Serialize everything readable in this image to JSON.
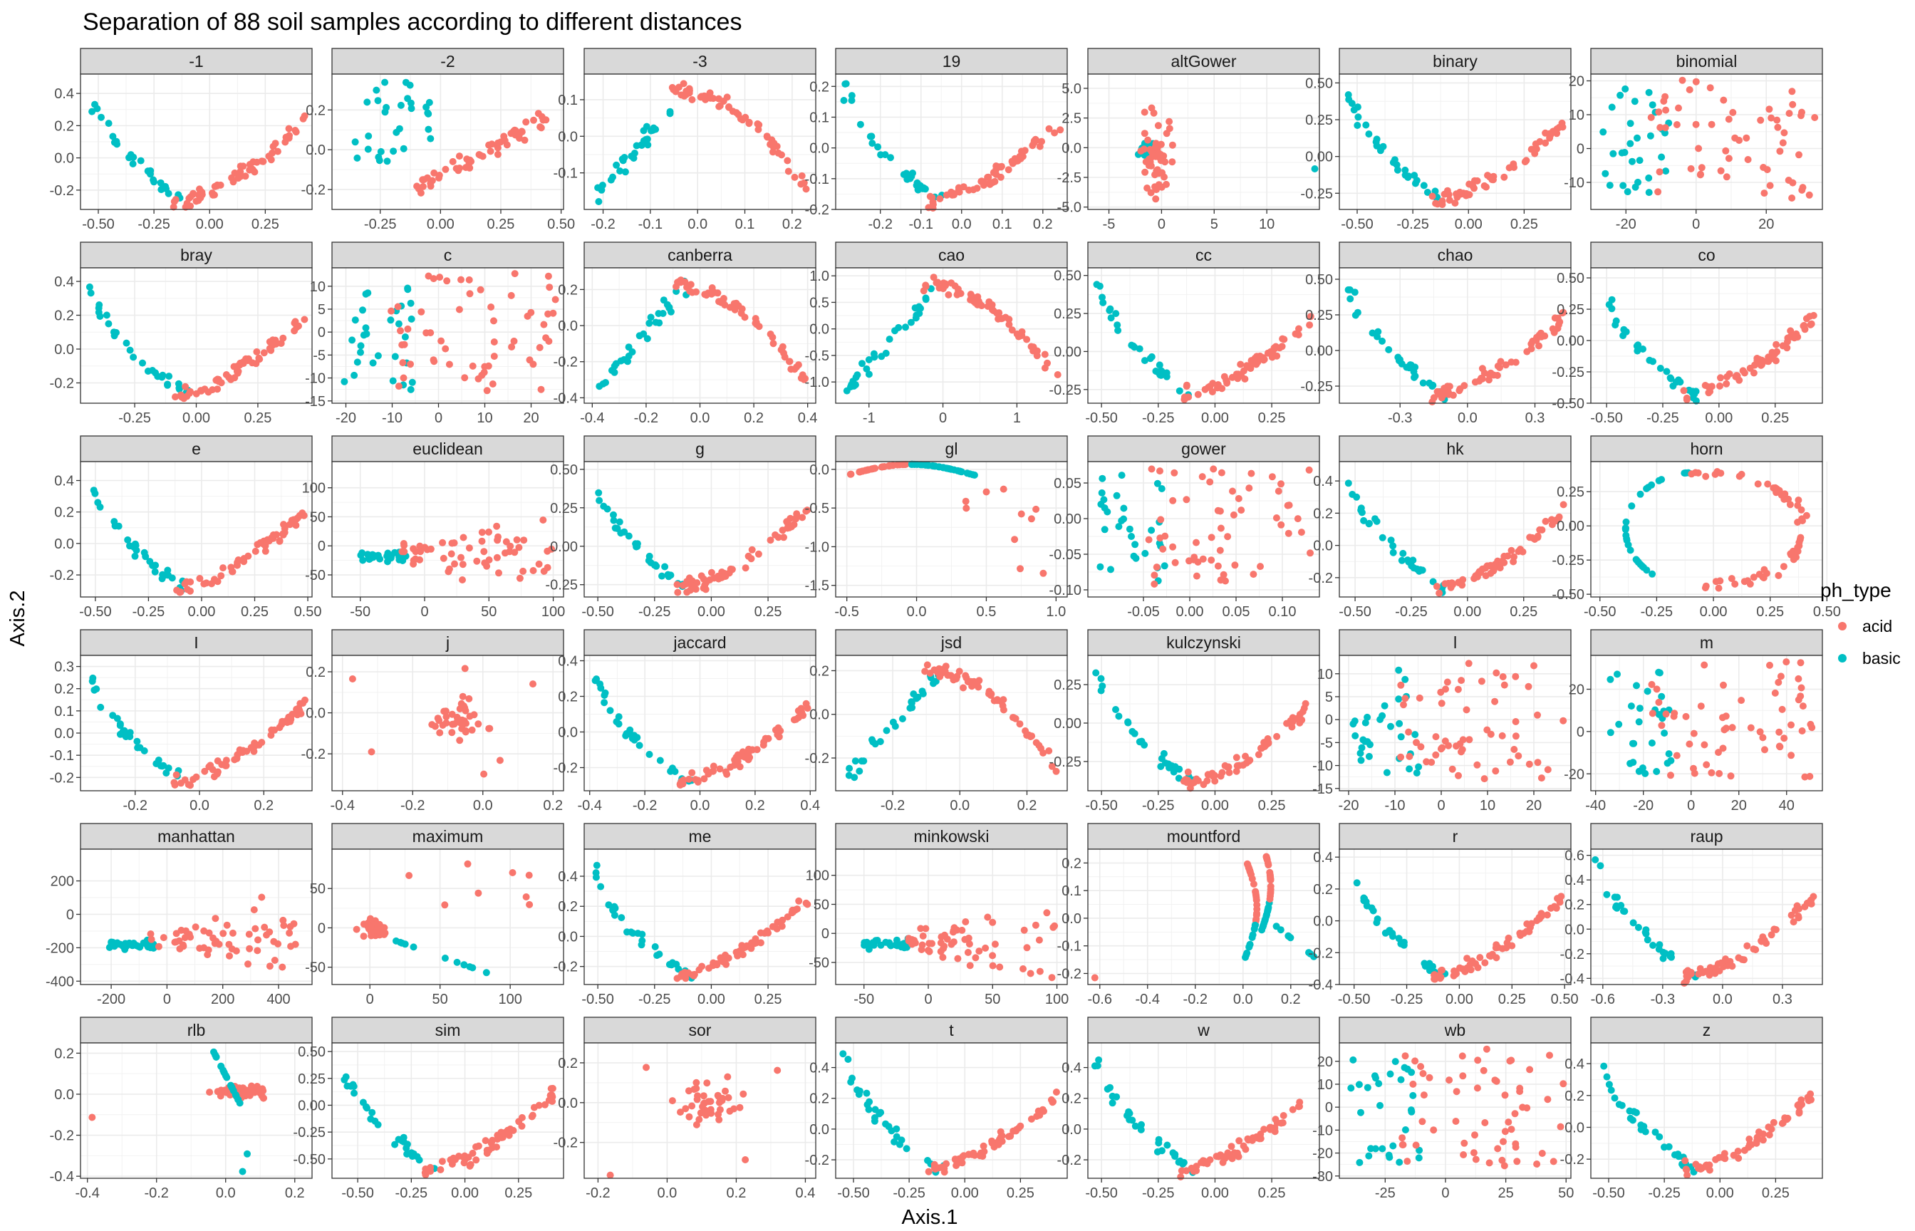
{
  "colors": {
    "acid": "#f8766d",
    "basic": "#00bfc4",
    "strip": "#d9d9d9",
    "panel_border": "#333333",
    "grid": "#ebebeb"
  },
  "chart_data": {
    "type": "scatter",
    "title": "Separation of 88 soil samples according to different distances",
    "xlabel": "Axis.1",
    "ylabel": "Axis.2",
    "legend": {
      "title": "ph_type",
      "position": "right",
      "entries": [
        "acid",
        "basic"
      ]
    },
    "facets": [
      {
        "name": "-1",
        "xticks": [
          -0.5,
          -0.25,
          0,
          0.25
        ],
        "yticks": [
          -0.2,
          0,
          0.2,
          0.4
        ],
        "xlim": [
          -0.58,
          0.46
        ],
        "ylim": [
          -0.32,
          0.52
        ],
        "xfmt": 2,
        "yfmt": 1,
        "shape": "u"
      },
      {
        "name": "-2",
        "xticks": [
          -0.25,
          0,
          0.25,
          0.5
        ],
        "yticks": [
          -0.2,
          0,
          0.2
        ],
        "xlim": [
          -0.45,
          0.51
        ],
        "ylim": [
          -0.3,
          0.38
        ],
        "xfmt": 2,
        "yfmt": 1,
        "shape": "diag"
      },
      {
        "name": "-3",
        "xticks": [
          -0.2,
          -0.1,
          0,
          0.1,
          0.2
        ],
        "yticks": [
          -0.1,
          0,
          0.1
        ],
        "xlim": [
          -0.24,
          0.25
        ],
        "ylim": [
          -0.2,
          0.17
        ],
        "xfmt": 1,
        "yfmt": 1,
        "shape": "arch"
      },
      {
        "name": "19",
        "xticks": [
          -0.2,
          -0.1,
          0,
          0.1,
          0.2
        ],
        "yticks": [
          -0.2,
          -0.1,
          0,
          0.1,
          0.2
        ],
        "xlim": [
          -0.31,
          0.26
        ],
        "ylim": [
          -0.2,
          0.24
        ],
        "xfmt": 1,
        "yfmt": 1,
        "shape": "u"
      },
      {
        "name": "altGower",
        "xticks": [
          -5,
          0,
          5,
          10
        ],
        "yticks": [
          -5,
          -2.5,
          0,
          2.5,
          5
        ],
        "xlim": [
          -7,
          15
        ],
        "ylim": [
          -5.2,
          6.2
        ],
        "xfmt": 0,
        "yfmt": 1,
        "shape": "star"
      },
      {
        "name": "binary",
        "xticks": [
          -0.5,
          -0.25,
          0,
          0.25
        ],
        "yticks": [
          -0.25,
          0,
          0.25,
          0.5
        ],
        "xlim": [
          -0.58,
          0.46
        ],
        "ylim": [
          -0.36,
          0.56
        ],
        "xfmt": 2,
        "yfmt": 2,
        "shape": "u"
      },
      {
        "name": "binomial",
        "xticks": [
          -20,
          0,
          20
        ],
        "yticks": [
          -10,
          0,
          10,
          20
        ],
        "xlim": [
          -30,
          36
        ],
        "ylim": [
          -18,
          22
        ],
        "xfmt": 0,
        "yfmt": 0,
        "shape": "cloud"
      },
      {
        "name": "bray",
        "xticks": [
          -0.25,
          0,
          0.25
        ],
        "yticks": [
          -0.2,
          0,
          0.2,
          0.4
        ],
        "xlim": [
          -0.47,
          0.47
        ],
        "ylim": [
          -0.32,
          0.48
        ],
        "xfmt": 2,
        "yfmt": 1,
        "shape": "u"
      },
      {
        "name": "c",
        "xticks": [
          -20,
          -10,
          0,
          10,
          20
        ],
        "yticks": [
          -15,
          -10,
          -5,
          0,
          5,
          10
        ],
        "xlim": [
          -23,
          27
        ],
        "ylim": [
          -15.5,
          14
        ],
        "xfmt": 0,
        "yfmt": 0,
        "shape": "cloud"
      },
      {
        "name": "canberra",
        "xticks": [
          -0.4,
          -0.2,
          0,
          0.2,
          0.4
        ],
        "yticks": [
          -0.4,
          -0.2,
          0,
          0.2
        ],
        "xlim": [
          -0.43,
          0.43
        ],
        "ylim": [
          -0.43,
          0.32
        ],
        "xfmt": 1,
        "yfmt": 1,
        "shape": "arch"
      },
      {
        "name": "cao",
        "xticks": [
          -1,
          0,
          1
        ],
        "yticks": [
          -1,
          -0.5,
          0,
          0.5,
          1
        ],
        "xlim": [
          -1.45,
          1.68
        ],
        "ylim": [
          -1.4,
          1.15
        ],
        "xfmt": 0,
        "yfmt": 1,
        "shape": "arch"
      },
      {
        "name": "cc",
        "xticks": [
          -0.5,
          -0.25,
          0,
          0.25
        ],
        "yticks": [
          -0.25,
          0,
          0.25,
          0.5
        ],
        "xlim": [
          -0.56,
          0.46
        ],
        "ylim": [
          -0.34,
          0.55
        ],
        "xfmt": 2,
        "yfmt": 2,
        "shape": "u"
      },
      {
        "name": "chao",
        "xticks": [
          -0.3,
          0,
          0.3
        ],
        "yticks": [
          -0.25,
          0,
          0.25,
          0.5
        ],
        "xlim": [
          -0.57,
          0.46
        ],
        "ylim": [
          -0.37,
          0.58
        ],
        "xfmt": 1,
        "yfmt": 2,
        "shape": "u"
      },
      {
        "name": "co",
        "xticks": [
          -0.5,
          -0.25,
          0,
          0.25
        ],
        "yticks": [
          -0.5,
          -0.25,
          0,
          0.25,
          0.5
        ],
        "xlim": [
          -0.57,
          0.46
        ],
        "ylim": [
          -0.5,
          0.58
        ],
        "xfmt": 2,
        "yfmt": 2,
        "shape": "u"
      },
      {
        "name": "e",
        "xticks": [
          -0.5,
          -0.25,
          0,
          0.25,
          0.5
        ],
        "yticks": [
          -0.2,
          0,
          0.2,
          0.4
        ],
        "xlim": [
          -0.57,
          0.52
        ],
        "ylim": [
          -0.34,
          0.52
        ],
        "xfmt": 2,
        "yfmt": 1,
        "shape": "u"
      },
      {
        "name": "euclidean",
        "xticks": [
          -50,
          0,
          50,
          100
        ],
        "yticks": [
          -50,
          0,
          50,
          100
        ],
        "xlim": [
          -72,
          108
        ],
        "ylim": [
          -88,
          145
        ],
        "xfmt": 0,
        "yfmt": 0,
        "shape": "fan"
      },
      {
        "name": "g",
        "xticks": [
          -0.5,
          -0.25,
          0,
          0.25
        ],
        "yticks": [
          -0.25,
          0,
          0.25,
          0.5
        ],
        "xlim": [
          -0.56,
          0.46
        ],
        "ylim": [
          -0.33,
          0.55
        ],
        "xfmt": 2,
        "yfmt": 2,
        "shape": "u"
      },
      {
        "name": "gl",
        "xticks": [
          -0.5,
          0,
          0.5,
          1
        ],
        "yticks": [
          -1.5,
          -1,
          -0.5,
          0
        ],
        "xlim": [
          -0.58,
          1.08
        ],
        "ylim": [
          -1.65,
          0.1
        ],
        "xfmt": 1,
        "yfmt": 1,
        "shape": "gl"
      },
      {
        "name": "gower",
        "xticks": [
          -0.05,
          0,
          0.05,
          0.1
        ],
        "yticks": [
          -0.1,
          -0.05,
          0,
          0.05
        ],
        "xlim": [
          -0.11,
          0.14
        ],
        "ylim": [
          -0.11,
          0.08
        ],
        "xfmt": 2,
        "yfmt": 2,
        "shape": "cloud"
      },
      {
        "name": "hk",
        "xticks": [
          -0.5,
          -0.25,
          0,
          0.25
        ],
        "yticks": [
          -0.2,
          0,
          0.2,
          0.4
        ],
        "xlim": [
          -0.57,
          0.46
        ],
        "ylim": [
          -0.32,
          0.52
        ],
        "xfmt": 2,
        "yfmt": 1,
        "shape": "u"
      },
      {
        "name": "horn",
        "xticks": [
          -0.5,
          -0.25,
          0,
          0.25,
          0.5
        ],
        "yticks": [
          -0.5,
          -0.25,
          0,
          0.25
        ],
        "xlim": [
          -0.54,
          0.48
        ],
        "ylim": [
          -0.52,
          0.47
        ],
        "xfmt": 2,
        "yfmt": 2,
        "shape": "ring"
      },
      {
        "name": "I",
        "xticks": [
          -0.2,
          0,
          0.2
        ],
        "yticks": [
          -0.2,
          -0.1,
          0,
          0.1,
          0.2,
          0.3
        ],
        "xlim": [
          -0.37,
          0.35
        ],
        "ylim": [
          -0.26,
          0.35
        ],
        "xfmt": 1,
        "yfmt": 1,
        "shape": "u"
      },
      {
        "name": "j",
        "xticks": [
          -0.4,
          -0.2,
          0,
          0.2
        ],
        "yticks": [
          -0.2,
          0,
          0.2
        ],
        "xlim": [
          -0.43,
          0.23
        ],
        "ylim": [
          -0.38,
          0.28
        ],
        "xfmt": 1,
        "yfmt": 1,
        "shape": "sparse"
      },
      {
        "name": "jaccard",
        "xticks": [
          -0.4,
          -0.2,
          0,
          0.2,
          0.4
        ],
        "yticks": [
          -0.2,
          0,
          0.2,
          0.4
        ],
        "xlim": [
          -0.42,
          0.42
        ],
        "ylim": [
          -0.33,
          0.43
        ],
        "xfmt": 1,
        "yfmt": 1,
        "shape": "u"
      },
      {
        "name": "jsd",
        "xticks": [
          -0.2,
          0,
          0.2
        ],
        "yticks": [
          -0.2,
          0,
          0.2
        ],
        "xlim": [
          -0.37,
          0.32
        ],
        "ylim": [
          -0.35,
          0.27
        ],
        "xfmt": 1,
        "yfmt": 1,
        "shape": "arch"
      },
      {
        "name": "kulczynski",
        "xticks": [
          -0.5,
          -0.25,
          0,
          0.25
        ],
        "yticks": [
          -0.25,
          0,
          0.25
        ],
        "xlim": [
          -0.56,
          0.46
        ],
        "ylim": [
          -0.44,
          0.44
        ],
        "xfmt": 2,
        "yfmt": 2,
        "shape": "u"
      },
      {
        "name": "l",
        "xticks": [
          -20,
          -10,
          0,
          10,
          20
        ],
        "yticks": [
          -15,
          -10,
          -5,
          0,
          5,
          10
        ],
        "xlim": [
          -22,
          28
        ],
        "ylim": [
          -15.5,
          14
        ],
        "xfmt": 0,
        "yfmt": 0,
        "shape": "cloud"
      },
      {
        "name": "m",
        "xticks": [
          -40,
          -20,
          0,
          20,
          40
        ],
        "yticks": [
          -20,
          0,
          20
        ],
        "xlim": [
          -42,
          55
        ],
        "ylim": [
          -28,
          36
        ],
        "xfmt": 0,
        "yfmt": 0,
        "shape": "cloud"
      },
      {
        "name": "manhattan",
        "xticks": [
          -200,
          0,
          200,
          400
        ],
        "yticks": [
          -400,
          -200,
          0,
          200
        ],
        "xlim": [
          -310,
          520
        ],
        "ylim": [
          -420,
          390
        ],
        "xfmt": 0,
        "yfmt": 0,
        "shape": "fan"
      },
      {
        "name": "maximum",
        "xticks": [
          0,
          50,
          100
        ],
        "yticks": [
          -50,
          0,
          50
        ],
        "xlim": [
          -27,
          138
        ],
        "ylim": [
          -72,
          100
        ],
        "xfmt": 0,
        "yfmt": 0,
        "shape": "maximum"
      },
      {
        "name": "me",
        "xticks": [
          -0.5,
          -0.25,
          0,
          0.25
        ],
        "yticks": [
          -0.2,
          0,
          0.2,
          0.4
        ],
        "xlim": [
          -0.56,
          0.46
        ],
        "ylim": [
          -0.32,
          0.58
        ],
        "xfmt": 2,
        "yfmt": 1,
        "shape": "u"
      },
      {
        "name": "minkowski",
        "xticks": [
          -50,
          0,
          50,
          100
        ],
        "yticks": [
          -50,
          0,
          50,
          100
        ],
        "xlim": [
          -72,
          108
        ],
        "ylim": [
          -88,
          145
        ],
        "xfmt": 0,
        "yfmt": 0,
        "shape": "fan"
      },
      {
        "name": "mountford",
        "xticks": [
          -0.6,
          -0.4,
          -0.2,
          0,
          0.2
        ],
        "yticks": [
          -0.2,
          -0.1,
          0,
          0.1,
          0.2
        ],
        "xlim": [
          -0.65,
          0.32
        ],
        "ylim": [
          -0.24,
          0.25
        ],
        "xfmt": 1,
        "yfmt": 1,
        "shape": "mountford"
      },
      {
        "name": "r",
        "xticks": [
          -0.5,
          -0.25,
          0,
          0.25,
          0.5
        ],
        "yticks": [
          -0.4,
          -0.2,
          0,
          0.2,
          0.4
        ],
        "xlim": [
          -0.57,
          0.53
        ],
        "ylim": [
          -0.4,
          0.45
        ],
        "xfmt": 2,
        "yfmt": 1,
        "shape": "u"
      },
      {
        "name": "raup",
        "xticks": [
          -0.6,
          -0.3,
          0,
          0.3
        ],
        "yticks": [
          -0.4,
          -0.2,
          0,
          0.2,
          0.4,
          0.6
        ],
        "xlim": [
          -0.66,
          0.5
        ],
        "ylim": [
          -0.45,
          0.65
        ],
        "xfmt": 1,
        "yfmt": 1,
        "shape": "u"
      },
      {
        "name": "rlb",
        "xticks": [
          -0.4,
          -0.2,
          0,
          0.2
        ],
        "yticks": [
          -0.4,
          -0.2,
          0,
          0.2
        ],
        "xlim": [
          -0.42,
          0.25
        ],
        "ylim": [
          -0.41,
          0.25
        ],
        "xfmt": 1,
        "yfmt": 1,
        "shape": "rlb"
      },
      {
        "name": "sim",
        "xticks": [
          -0.5,
          -0.25,
          0,
          0.25
        ],
        "yticks": [
          -0.5,
          -0.25,
          0,
          0.25,
          0.5
        ],
        "xlim": [
          -0.62,
          0.46
        ],
        "ylim": [
          -0.68,
          0.58
        ],
        "xfmt": 2,
        "yfmt": 2,
        "shape": "u"
      },
      {
        "name": "sor",
        "xticks": [
          -0.2,
          0,
          0.2,
          0.4
        ],
        "yticks": [
          -0.2,
          0,
          0.2
        ],
        "xlim": [
          -0.24,
          0.43
        ],
        "ylim": [
          -0.38,
          0.3
        ],
        "xfmt": 1,
        "yfmt": 1,
        "shape": "sparse"
      },
      {
        "name": "t",
        "xticks": [
          -0.5,
          -0.25,
          0,
          0.25
        ],
        "yticks": [
          -0.2,
          0,
          0.2,
          0.4
        ],
        "xlim": [
          -0.58,
          0.46
        ],
        "ylim": [
          -0.32,
          0.56
        ],
        "xfmt": 2,
        "yfmt": 1,
        "shape": "u"
      },
      {
        "name": "w",
        "xticks": [
          -0.5,
          -0.25,
          0,
          0.25
        ],
        "yticks": [
          -0.2,
          0,
          0.2,
          0.4
        ],
        "xlim": [
          -0.56,
          0.46
        ],
        "ylim": [
          -0.32,
          0.56
        ],
        "xfmt": 2,
        "yfmt": 1,
        "shape": "u"
      },
      {
        "name": "wb",
        "xticks": [
          -25,
          0,
          25,
          50
        ],
        "yticks": [
          -30,
          -20,
          -10,
          0,
          10,
          20
        ],
        "xlim": [
          -44,
          52
        ],
        "ylim": [
          -31,
          28
        ],
        "xfmt": 0,
        "yfmt": 0,
        "shape": "cloud"
      },
      {
        "name": "z",
        "xticks": [
          -0.5,
          -0.25,
          0,
          0.25
        ],
        "yticks": [
          -0.2,
          0,
          0.2,
          0.4
        ],
        "xlim": [
          -0.58,
          0.46
        ],
        "ylim": [
          -0.32,
          0.53
        ],
        "xfmt": 2,
        "yfmt": 1,
        "shape": "u"
      }
    ]
  }
}
